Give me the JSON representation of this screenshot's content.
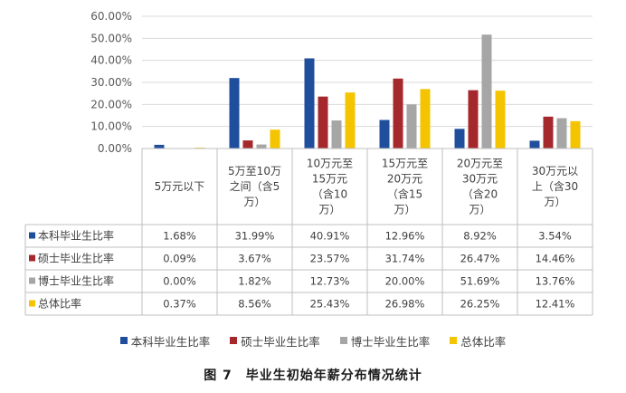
{
  "chart_data": {
    "type": "bar",
    "title": "",
    "categories": [
      [
        "5万元以下"
      ],
      [
        "5万至10万",
        "之间（含5",
        "万）"
      ],
      [
        "10万元至",
        "15万元",
        "（含10",
        "万）"
      ],
      [
        "15万元至",
        "20万元",
        "（含15",
        "万）"
      ],
      [
        "20万元至",
        "30万元",
        "（含20",
        "万）"
      ],
      [
        "30万元以",
        "上（含30",
        "万）"
      ]
    ],
    "series": [
      {
        "name": "本科毕业生比率",
        "color": "#1f4e9c",
        "values": [
          1.68,
          31.99,
          40.91,
          12.96,
          8.92,
          3.54
        ],
        "labels": [
          "1.68%",
          "31.99%",
          "40.91%",
          "12.96%",
          "8.92%",
          "3.54%"
        ]
      },
      {
        "name": "硕士毕业生比率",
        "color": "#a5282c",
        "values": [
          0.09,
          3.67,
          23.57,
          31.74,
          26.47,
          14.46
        ],
        "labels": [
          "0.09%",
          "3.67%",
          "23.57%",
          "31.74%",
          "26.47%",
          "14.46%"
        ]
      },
      {
        "name": "博士毕业生比率",
        "color": "#a6a6a6",
        "values": [
          0.0,
          1.82,
          12.73,
          20.0,
          51.69,
          13.76
        ],
        "labels": [
          "0.00%",
          "1.82%",
          "12.73%",
          "20.00%",
          "51.69%",
          "13.76%"
        ]
      },
      {
        "name": "总体比率",
        "color": "#f5c400",
        "values": [
          0.37,
          8.56,
          25.43,
          26.98,
          26.25,
          12.41
        ],
        "labels": [
          "0.37%",
          "8.56%",
          "25.43%",
          "26.98%",
          "26.25%",
          "12.41%"
        ]
      }
    ],
    "ylim": [
      0,
      60
    ],
    "yticks": [
      "0.00%",
      "10.00%",
      "20.00%",
      "30.00%",
      "40.00%",
      "50.00%",
      "60.00%"
    ],
    "grid": true,
    "legend_position": "bottom",
    "data_table": true
  },
  "caption": "图 7　毕业生初始年薪分布情况统计"
}
